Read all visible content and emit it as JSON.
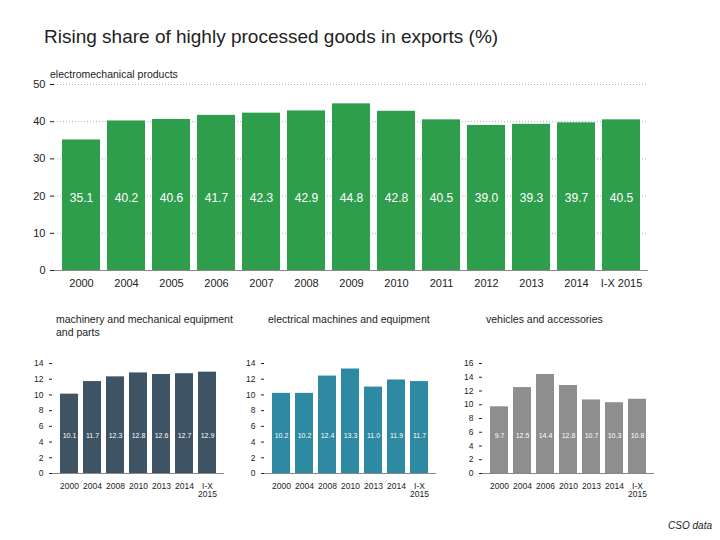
{
  "title": "Rising share of highly processed goods in exports (%)",
  "source": "CSO data",
  "chart_data": [
    {
      "type": "bar",
      "title": "electromechanical products",
      "categories": [
        "2000",
        "2004",
        "2005",
        "2006",
        "2007",
        "2008",
        "2009",
        "2010",
        "2011",
        "2012",
        "2013",
        "2014",
        "I-X 2015"
      ],
      "values": [
        35.1,
        40.2,
        40.6,
        41.7,
        42.3,
        42.9,
        44.8,
        42.8,
        40.5,
        39.0,
        39.3,
        39.7,
        40.5
      ],
      "value_labels": [
        "35.1",
        "40.2",
        "40.6",
        "41.7",
        "42.3",
        "42.9",
        "44.8",
        "42.8",
        "40.5",
        "39.0",
        "39.3",
        "39.7",
        "40.5"
      ],
      "color": "#2e9e4c",
      "ylim": [
        0,
        50
      ],
      "yticks": [
        0,
        10,
        20,
        30,
        40,
        50
      ],
      "grid": true,
      "data_labels": true
    },
    {
      "type": "bar",
      "title": "machinery and mechanical equipment  and parts",
      "categories": [
        "2000",
        "2004",
        "2008",
        "2010",
        "2013",
        "2014",
        "I-X 2015"
      ],
      "values": [
        10.1,
        11.7,
        12.3,
        12.8,
        12.6,
        12.7,
        12.9
      ],
      "color": "#3e5465",
      "ylim": [
        0,
        14
      ],
      "yticks": [
        0,
        2,
        4,
        6,
        8,
        10,
        12,
        14
      ],
      "grid": false,
      "data_labels": true
    },
    {
      "type": "bar",
      "title": "electrical machines and equipment",
      "categories": [
        "2000",
        "2004",
        "2008",
        "2010",
        "2013",
        "2014",
        "I-X 2015"
      ],
      "values": [
        10.2,
        10.2,
        12.4,
        13.3,
        11.0,
        11.9,
        11.7
      ],
      "value_labels": [
        "10.2",
        "10.2",
        "12.4",
        "13.3",
        "11.0",
        "11.9",
        "11.7"
      ],
      "color": "#2e8aa2",
      "ylim": [
        0,
        14
      ],
      "yticks": [
        0,
        2,
        4,
        6,
        8,
        10,
        12,
        14
      ],
      "grid": false,
      "data_labels": true
    },
    {
      "type": "bar",
      "title": "vehicles and accessories",
      "categories": [
        "2000",
        "2004",
        "2006",
        "2010",
        "2013",
        "2014",
        "I-X 2015"
      ],
      "values": [
        9.7,
        12.5,
        14.4,
        12.8,
        10.7,
        10.3,
        10.8
      ],
      "color": "#8e8e8e",
      "ylim": [
        0,
        16
      ],
      "yticks": [
        0,
        2,
        4,
        6,
        8,
        10,
        12,
        14,
        16
      ],
      "grid": false,
      "data_labels": true
    }
  ]
}
